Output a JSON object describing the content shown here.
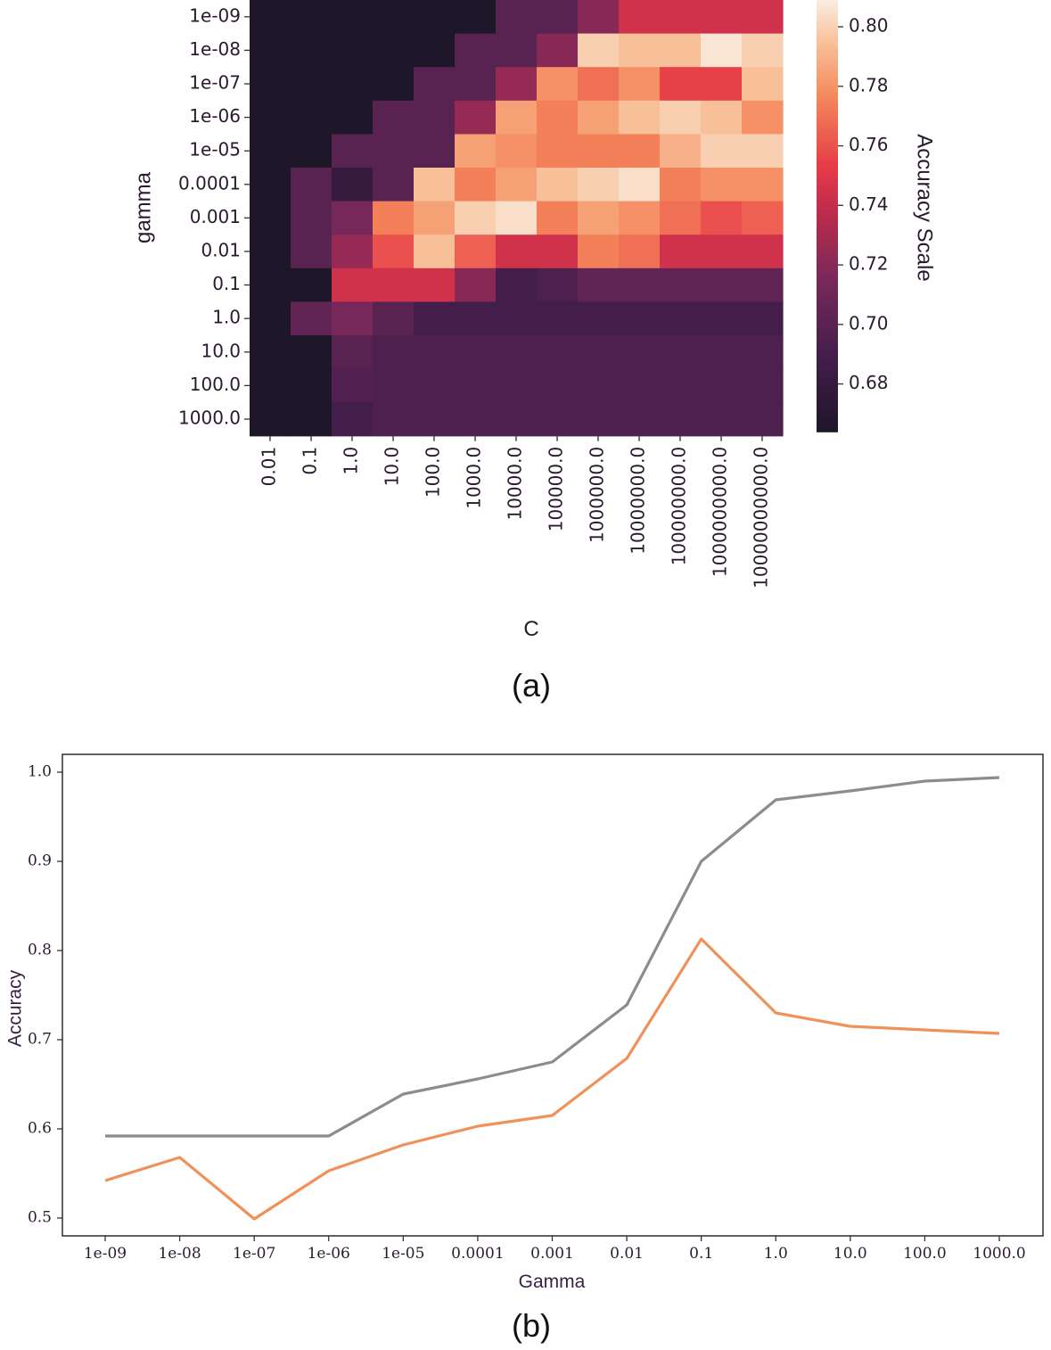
{
  "chart_data": [
    {
      "type": "heatmap",
      "panel_label": "(a)",
      "xlabel": "C",
      "ylabel": "gamma",
      "colorbar_label": "Accuracy Scale",
      "colorbar_ticks": [
        "0.68",
        "0.70",
        "0.72",
        "0.74",
        "0.76",
        "0.78",
        "0.80"
      ],
      "colorbar_range": [
        0.664,
        0.809
      ],
      "colormap": "rocket",
      "x_categories": [
        "0.01",
        "0.1",
        "1.0",
        "10.0",
        "100.0",
        "1000.0",
        "10000.0",
        "100000.0",
        "1000000.0",
        "10000000.0",
        "100000000.0",
        "1000000000.0",
        "10000000000.0"
      ],
      "y_categories": [
        "1e-09",
        "1e-08",
        "1e-07",
        "1e-06",
        "1e-05",
        "0.0001",
        "0.001",
        "0.01",
        "0.1",
        "1.0",
        "10.0",
        "100.0",
        "1000.0"
      ],
      "values": [
        [
          0.665,
          0.665,
          0.665,
          0.665,
          0.665,
          0.665,
          0.7,
          0.7,
          0.72,
          0.745,
          0.745,
          0.745,
          0.745
        ],
        [
          0.665,
          0.665,
          0.665,
          0.665,
          0.665,
          0.7,
          0.7,
          0.72,
          0.8,
          0.795,
          0.795,
          0.807,
          0.8
        ],
        [
          0.665,
          0.665,
          0.665,
          0.665,
          0.7,
          0.7,
          0.725,
          0.78,
          0.77,
          0.78,
          0.755,
          0.755,
          0.795
        ],
        [
          0.665,
          0.665,
          0.665,
          0.7,
          0.7,
          0.725,
          0.785,
          0.775,
          0.785,
          0.795,
          0.8,
          0.795,
          0.78
        ],
        [
          0.665,
          0.665,
          0.7,
          0.7,
          0.7,
          0.785,
          0.78,
          0.775,
          0.775,
          0.775,
          0.79,
          0.8,
          0.8
        ],
        [
          0.665,
          0.7,
          0.68,
          0.7,
          0.795,
          0.775,
          0.785,
          0.795,
          0.8,
          0.805,
          0.775,
          0.78,
          0.78
        ],
        [
          0.665,
          0.7,
          0.715,
          0.775,
          0.785,
          0.8,
          0.805,
          0.775,
          0.785,
          0.78,
          0.77,
          0.76,
          0.765
        ],
        [
          0.665,
          0.7,
          0.725,
          0.76,
          0.795,
          0.765,
          0.745,
          0.745,
          0.775,
          0.77,
          0.745,
          0.745,
          0.745
        ],
        [
          0.665,
          0.665,
          0.745,
          0.745,
          0.745,
          0.72,
          0.69,
          0.695,
          0.705,
          0.705,
          0.705,
          0.705,
          0.705
        ],
        [
          0.665,
          0.705,
          0.715,
          0.7,
          0.69,
          0.69,
          0.69,
          0.69,
          0.69,
          0.69,
          0.69,
          0.69,
          0.69
        ],
        [
          0.665,
          0.665,
          0.7,
          0.695,
          0.695,
          0.695,
          0.695,
          0.695,
          0.695,
          0.695,
          0.695,
          0.695,
          0.695
        ],
        [
          0.665,
          0.665,
          0.697,
          0.695,
          0.695,
          0.695,
          0.695,
          0.695,
          0.695,
          0.695,
          0.695,
          0.695,
          0.695
        ],
        [
          0.665,
          0.665,
          0.69,
          0.695,
          0.695,
          0.695,
          0.695,
          0.695,
          0.695,
          0.695,
          0.695,
          0.695,
          0.695
        ]
      ]
    },
    {
      "type": "line",
      "panel_label": "(b)",
      "xlabel": "Gamma",
      "ylabel": "Accuracy",
      "categories": [
        "1e-09",
        "1e-08",
        "1e-07",
        "1e-06",
        "1e-05",
        "0.0001",
        "0.001",
        "0.01",
        "0.1",
        "1.0",
        "10.0",
        "100.0",
        "1000.0"
      ],
      "ylim": [
        0.48,
        1.02
      ],
      "yticks": [
        "0.5",
        "0.6",
        "0.7",
        "0.8",
        "0.9",
        "1.0"
      ],
      "grid": false,
      "series": [
        {
          "color": "#8c8c8c",
          "values": [
            0.592,
            0.592,
            0.592,
            0.592,
            0.639,
            0.656,
            0.675,
            0.739,
            0.9,
            0.969,
            0.979,
            0.99,
            0.994
          ]
        },
        {
          "color": "#f0915a",
          "values": [
            0.542,
            0.568,
            0.499,
            0.553,
            0.582,
            0.603,
            0.615,
            0.679,
            0.813,
            0.73,
            0.715,
            0.711,
            0.707
          ]
        }
      ]
    }
  ]
}
